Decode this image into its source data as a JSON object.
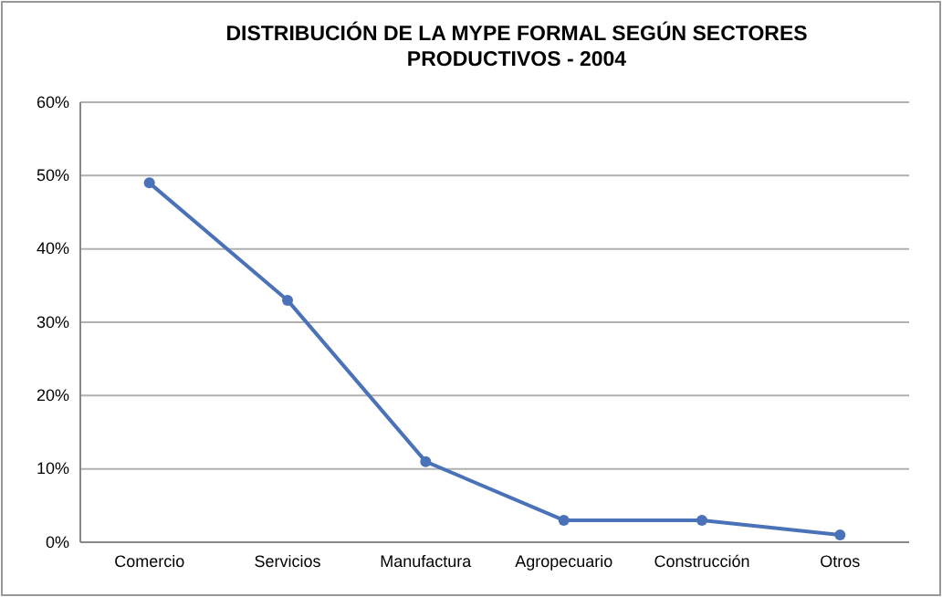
{
  "chart_data": {
    "type": "line",
    "title": "DISTRIBUCIÓN DE LA MYPE FORMAL SEGÚN SECTORES PRODUCTIVOS - 2004",
    "categories": [
      "Comercio",
      "Servicios",
      "Manufactura",
      "Agropecuario",
      "Construcción",
      "Otros"
    ],
    "series": [
      {
        "color": "#4a72b8",
        "values": [
          49,
          33,
          11,
          3,
          3,
          1
        ]
      }
    ],
    "ylim": [
      0,
      60
    ],
    "yticks": [
      {
        "value": 0,
        "label": "0%"
      },
      {
        "value": 10,
        "label": "10%"
      },
      {
        "value": 20,
        "label": "20%"
      },
      {
        "value": 30,
        "label": "30%"
      },
      {
        "value": 40,
        "label": "40%"
      },
      {
        "value": 50,
        "label": "50%"
      },
      {
        "value": 60,
        "label": "60%"
      }
    ],
    "grid": "y",
    "marker": "circle",
    "line_style": "solid"
  }
}
